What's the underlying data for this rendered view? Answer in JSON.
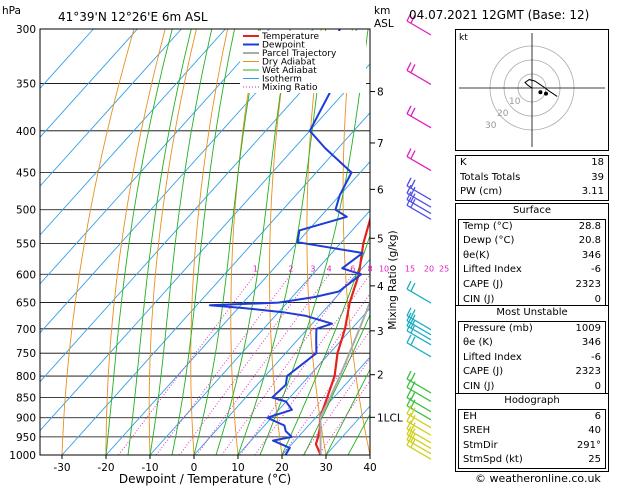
{
  "header": {
    "units_left": "hPa",
    "location": "41°39'N  12°26'E  6m  ASL",
    "units_km": "km",
    "units_asl": "ASL",
    "datetime": "04.07.2021  12GMT  (Base: 12)"
  },
  "credit": "© weatheronline.co.uk",
  "colors": {
    "temperature": "#e8201a",
    "dewpoint": "#1e3cd8",
    "parcel": "#aaaaaa",
    "dry_adiabat": "#e89020",
    "wet_adiabat": "#22b022",
    "isotherm": "#32a0e8",
    "mixing_ratio": "#e020c0",
    "barb": "#e020c0"
  },
  "chart_data": {
    "type": "line",
    "title": "41°39'N 12°26'E 6m ASL",
    "xlabel": "Dewpoint / Temperature (°C)",
    "ylabel": "hPa",
    "right_label": "Mixing Ratio (g/kg)",
    "xlim": [
      -35,
      40
    ],
    "ylim": [
      1000,
      300
    ],
    "x_ticks": [
      -30,
      -20,
      -10,
      0,
      10,
      20,
      30,
      40
    ],
    "pressure_levels": [
      300,
      350,
      400,
      450,
      500,
      550,
      600,
      650,
      700,
      750,
      800,
      850,
      900,
      950,
      1000
    ],
    "km_ticks": [
      {
        "label": "8",
        "p": 358
      },
      {
        "label": "7",
        "p": 414
      },
      {
        "label": "6",
        "p": 472
      },
      {
        "label": "5",
        "p": 542
      },
      {
        "label": "4",
        "p": 620
      },
      {
        "label": "3",
        "p": 704
      },
      {
        "label": "2",
        "p": 797
      },
      {
        "label": "1LCL",
        "p": 899
      }
    ],
    "mixing_ratio_labels": [
      "1",
      "2",
      "3",
      "4",
      "6",
      "8",
      "10",
      "15",
      "20",
      "25"
    ],
    "mixing_ratio_values": [
      1,
      2,
      3,
      4,
      6,
      8,
      10,
      15,
      20,
      25
    ],
    "legend": [
      "Temperature",
      "Dewpoint",
      "Parcel Trajectory",
      "Dry Adiabat",
      "Wet Adiabat",
      "Isotherm",
      "Mixing Ratio"
    ],
    "series": [
      {
        "name": "Temperature",
        "points": [
          [
            1000,
            28.8
          ],
          [
            970,
            25.5
          ],
          [
            950,
            24.5
          ],
          [
            925,
            23.0
          ],
          [
            900,
            21.0
          ],
          [
            850,
            18.5
          ],
          [
            800,
            15.8
          ],
          [
            750,
            11.8
          ],
          [
            700,
            8.5
          ],
          [
            650,
            4.2
          ],
          [
            600,
            0.5
          ],
          [
            550,
            -4.8
          ],
          [
            500,
            -9.5
          ],
          [
            450,
            -15.5
          ],
          [
            400,
            -22.0
          ],
          [
            350,
            -29.5
          ],
          [
            300,
            -38.0
          ]
        ]
      },
      {
        "name": "Dewpoint",
        "points": [
          [
            1000,
            20.8
          ],
          [
            980,
            20.3
          ],
          [
            960,
            15.0
          ],
          [
            950,
            18.5
          ],
          [
            935,
            16.0
          ],
          [
            920,
            14.5
          ],
          [
            900,
            9.0
          ],
          [
            880,
            13.0
          ],
          [
            860,
            10.0
          ],
          [
            850,
            6.0
          ],
          [
            820,
            6.5
          ],
          [
            800,
            5.0
          ],
          [
            750,
            7.0
          ],
          [
            720,
            4.0
          ],
          [
            700,
            2.0
          ],
          [
            690,
            4.5
          ],
          [
            675,
            -3.0
          ],
          [
            668,
            -9.0
          ],
          [
            660,
            -19.0
          ],
          [
            655,
            -27.0
          ],
          [
            650,
            -12.0
          ],
          [
            640,
            -5.0
          ],
          [
            630,
            -0.5
          ],
          [
            600,
            1.0
          ],
          [
            590,
            -4.5
          ],
          [
            565,
            -3.0
          ],
          [
            548,
            -20.0
          ],
          [
            530,
            -22.0
          ],
          [
            510,
            -14.0
          ],
          [
            500,
            -18.0
          ],
          [
            480,
            -20.0
          ],
          [
            450,
            -22.0
          ],
          [
            420,
            -33.0
          ],
          [
            400,
            -40.0
          ],
          [
            350,
            -44.0
          ],
          [
            330,
            -50.0
          ],
          [
            300,
            -54.0
          ]
        ]
      },
      {
        "name": "Parcel Trajectory",
        "points": [
          [
            1000,
            28.8
          ],
          [
            899,
            21.0
          ],
          [
            850,
            19.2
          ],
          [
            800,
            17.0
          ],
          [
            750,
            14.5
          ],
          [
            700,
            11.8
          ],
          [
            650,
            8.8
          ],
          [
            600,
            5.5
          ],
          [
            550,
            2.0
          ],
          [
            500,
            -2.2
          ],
          [
            450,
            -7.0
          ],
          [
            400,
            -12.5
          ],
          [
            375,
            -16.0
          ]
        ]
      }
    ],
    "wind_barbs_pressure": [
      300,
      345,
      390,
      440,
      478,
      488,
      497,
      505,
      640,
      690,
      700,
      710,
      720,
      745,
      825,
      845,
      870,
      890,
      910,
      930,
      950,
      965,
      980,
      995
    ]
  },
  "indices": {
    "k_label": "K",
    "k_value": "18",
    "tt_label": "Totals Totals",
    "tt_value": "39",
    "pw_label": "PW (cm)",
    "pw_value": "3.11"
  },
  "surface": {
    "title": "Surface",
    "rows": [
      {
        "label": "Temp (°C)",
        "value": "28.8"
      },
      {
        "label": "Dewp (°C)",
        "value": "20.8"
      },
      {
        "label": "θe(K)",
        "value": "346"
      },
      {
        "label": "Lifted Index",
        "value": "-6"
      },
      {
        "label": "CAPE (J)",
        "value": "2323"
      },
      {
        "label": "CIN (J)",
        "value": "0"
      }
    ]
  },
  "most_unstable": {
    "title": "Most Unstable",
    "rows": [
      {
        "label": "Pressure (mb)",
        "value": "1009"
      },
      {
        "label": "θe (K)",
        "value": "346"
      },
      {
        "label": "Lifted Index",
        "value": "-6"
      },
      {
        "label": "CAPE (J)",
        "value": "2323"
      },
      {
        "label": "CIN (J)",
        "value": "0"
      }
    ]
  },
  "hodograph_box": {
    "title": "Hodograph",
    "rows": [
      {
        "label": "EH",
        "value": "6"
      },
      {
        "label": "SREH",
        "value": "40"
      },
      {
        "label": "StmDir",
        "value": "291°"
      },
      {
        "label": "StmSpd (kt)",
        "value": "25"
      }
    ]
  },
  "hodograph": {
    "label": "kt",
    "ring_labels": [
      "10",
      "20",
      "30"
    ],
    "trace_kt": [
      [
        0,
        0
      ],
      [
        -3,
        2
      ],
      [
        -5,
        4
      ],
      [
        -2,
        6
      ],
      [
        2,
        5
      ],
      [
        5,
        3
      ],
      [
        8,
        1
      ],
      [
        12,
        -2
      ],
      [
        18,
        -6
      ]
    ],
    "storm_kt": [
      [
        6,
        -3
      ],
      [
        10,
        -4
      ]
    ]
  }
}
